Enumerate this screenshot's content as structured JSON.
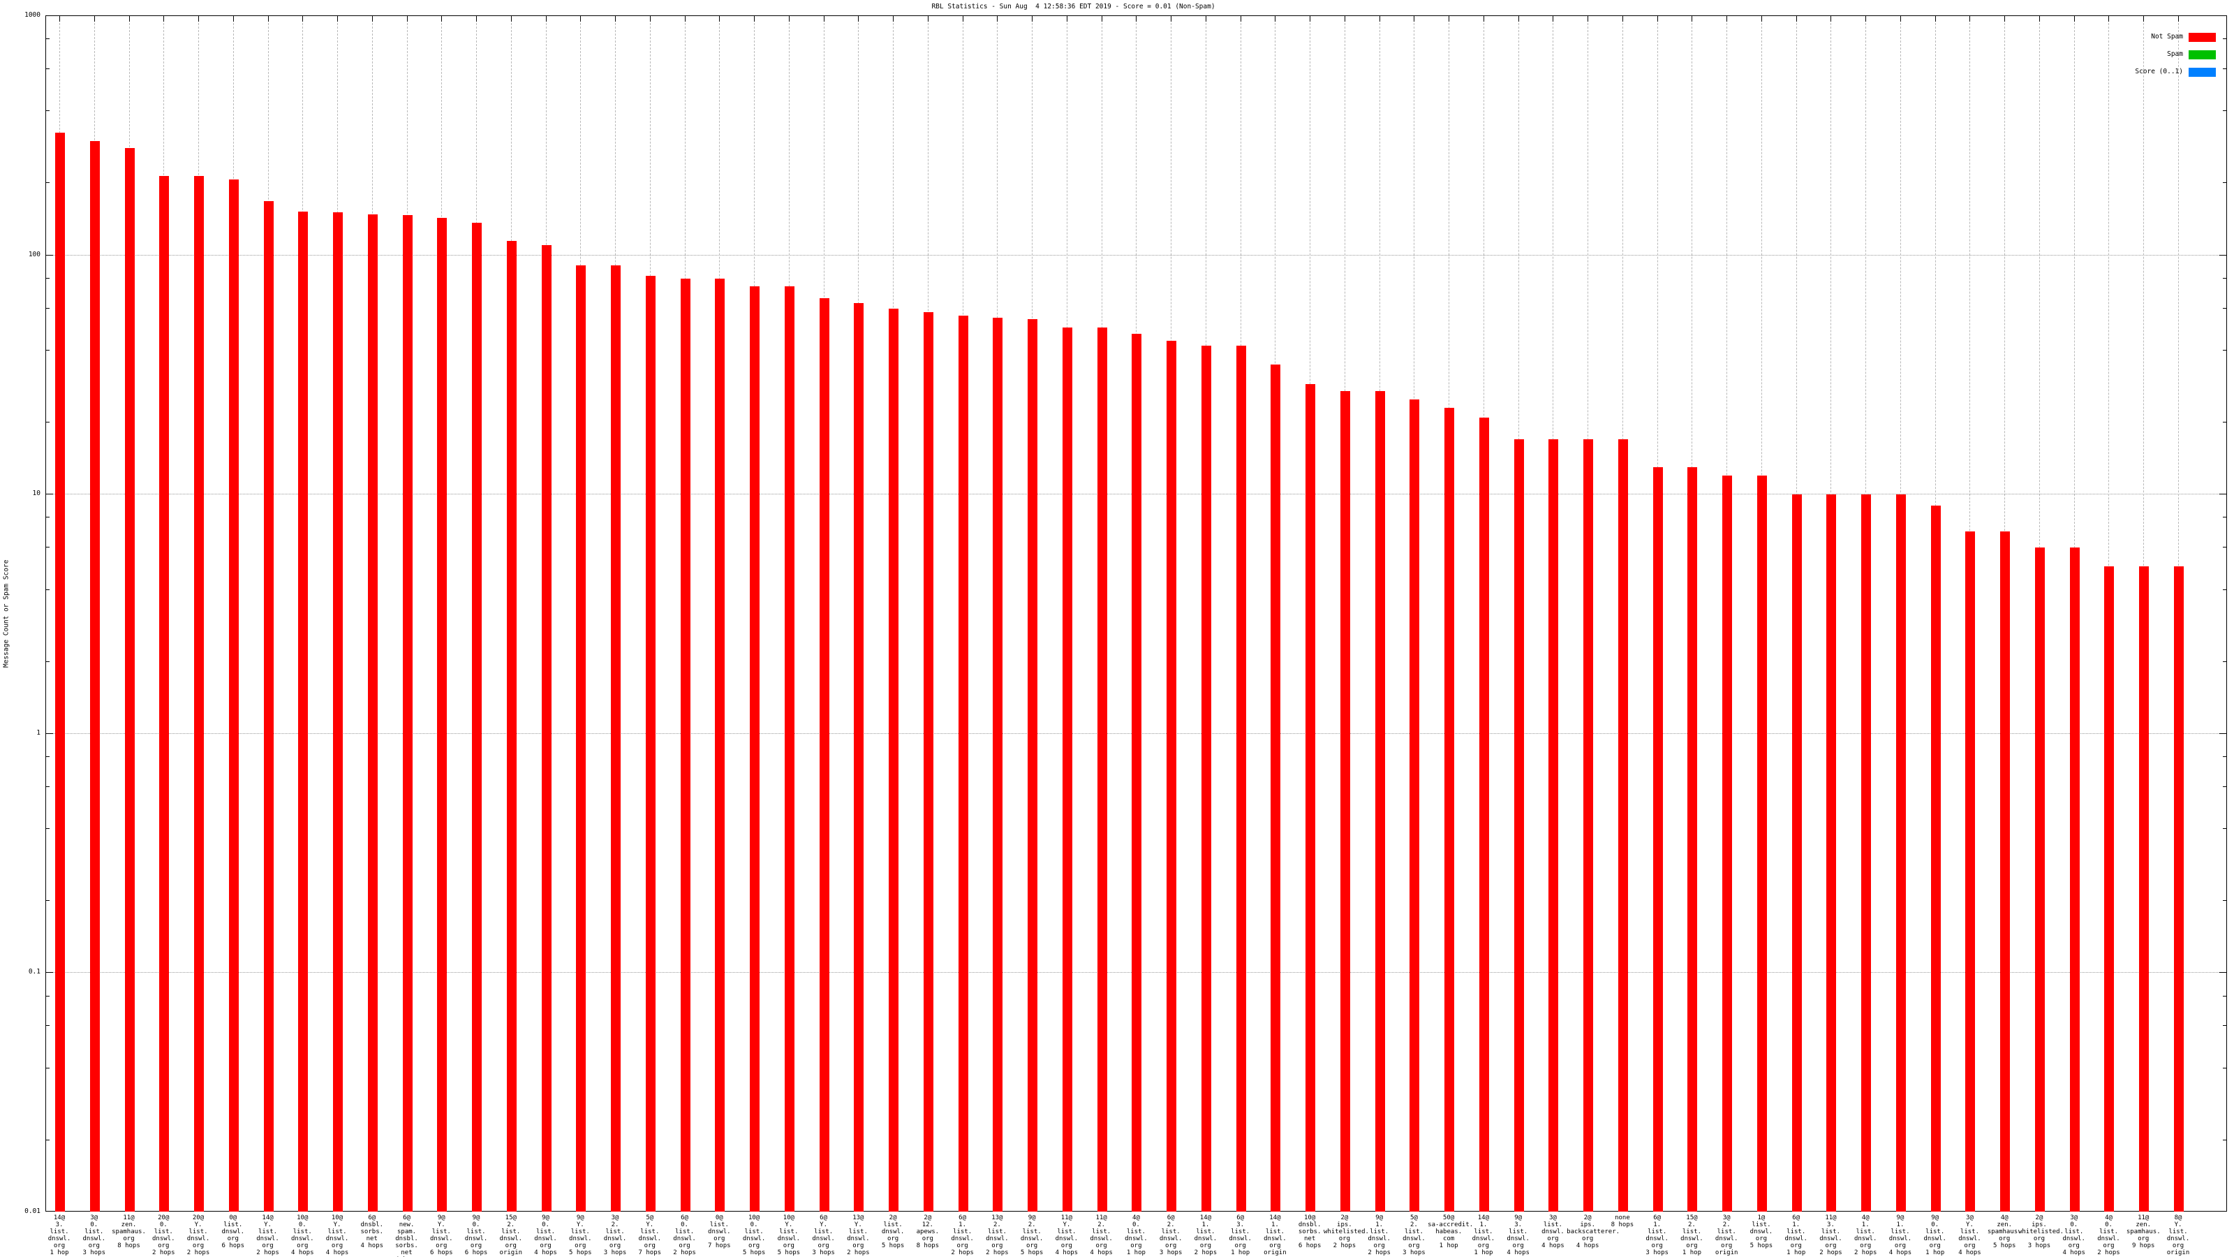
{
  "title": "RBL Statistics - Sun Aug  4 12:58:36 EDT 2019 - Score = 0.01 (Non-Spam)",
  "colors": {
    "not_spam": "#ff0000",
    "spam": "#00c000",
    "score": "#0080ff",
    "border": "#000000",
    "grid_h": "#9a9a9a",
    "grid_v": "#b8b8b8"
  },
  "legend": [
    {
      "label": "Not Spam",
      "color": "#ff0000"
    },
    {
      "label": "Spam",
      "color": "#00c000"
    },
    {
      "label": "Score (0..1)",
      "color": "#0080ff"
    }
  ],
  "chart_data": {
    "type": "bar",
    "title": "RBL Statistics - Sun Aug  4 12:58:36 EDT 2019 - Score = 0.01 (Non-Spam)",
    "ylabel": "Message Count or Spam Score",
    "xlabel": "",
    "yscale": "log",
    "ylim": [
      0.01,
      1000
    ],
    "ytick_labels": [
      "1000",
      "100",
      "10",
      "1",
      "0.1",
      "0.01"
    ],
    "ytick_values": [
      1000,
      100,
      10,
      1,
      0.1,
      0.01
    ],
    "grid": true,
    "legend_position": "top-right-inside",
    "series_name": "Not Spam",
    "bar_color": "#ff0000",
    "bars": [
      {
        "label": "14@\n3.\nlist.\ndnswl.\norg\n1 hop",
        "value": 325
      },
      {
        "label": "3@\n0.\nlist.\ndnswl.\norg\n3 hops",
        "value": 300
      },
      {
        "label": "11@\nzen.\nspamhaus.\norg\n8 hops",
        "value": 280
      },
      {
        "label": "20@\n0.\nlist.\ndnswl.\norg\n2 hops",
        "value": 214
      },
      {
        "label": "20@\nY.\nlist.\ndnswl.\norg\n2 hops",
        "value": 214
      },
      {
        "label": "0@\nlist.\ndnswl.\norg\n6 hops",
        "value": 207
      },
      {
        "label": "14@\nY.\nlist.\ndnswl.\norg\n2 hops",
        "value": 168
      },
      {
        "label": "10@\n0.\nlist.\ndnswl.\norg\n4 hops",
        "value": 152
      },
      {
        "label": "10@\nY.\nlist.\ndnswl.\norg\n4 hops",
        "value": 151
      },
      {
        "label": "6@\ndnsbl.\nsorbs.\nnet\n4 hops",
        "value": 148
      },
      {
        "label": "6@\nnew.\nspam.\ndnsbl.\nsorbs.\nnet\n4 hops",
        "value": 147
      },
      {
        "label": "9@\nY.\nlist.\ndnswl.\norg\n6 hops",
        "value": 143
      },
      {
        "label": "9@\n0.\nlist.\ndnswl.\norg\n6 hops",
        "value": 137
      },
      {
        "label": "15@\n2.\nlist.\ndnswl.\norg\norigin",
        "value": 115
      },
      {
        "label": "9@\n0.\nlist.\ndnswl.\norg\n4 hops",
        "value": 110
      },
      {
        "label": "9@\nY.\nlist.\ndnswl.\norg\n5 hops",
        "value": 91
      },
      {
        "label": "3@\n2.\nlist.\ndnswl.\norg\n3 hops",
        "value": 91
      },
      {
        "label": "5@\nY.\nlist.\ndnswl.\norg\n7 hops",
        "value": 82
      },
      {
        "label": "6@\n0.\nlist.\ndnswl.\norg\n2 hops",
        "value": 80
      },
      {
        "label": "0@\nlist.\ndnswl.\norg\n7 hops",
        "value": 80
      },
      {
        "label": "10@\n0.\nlist.\ndnswl.\norg\n5 hops",
        "value": 74
      },
      {
        "label": "10@\nY.\nlist.\ndnswl.\norg\n5 hops",
        "value": 74
      },
      {
        "label": "6@\nY.\nlist.\ndnswl.\norg\n3 hops",
        "value": 66
      },
      {
        "label": "13@\nY.\nlist.\ndnswl.\norg\n2 hops",
        "value": 63
      },
      {
        "label": "2@\nlist.\ndnswl.\norg\n5 hops",
        "value": 60
      },
      {
        "label": "2@\n12.\napews.\norg\n8 hops",
        "value": 58
      },
      {
        "label": "6@\n1.\nlist.\ndnswl.\norg\n2 hops",
        "value": 56
      },
      {
        "label": "13@\n2.\nlist.\ndnswl.\norg\n2 hops",
        "value": 55
      },
      {
        "label": "9@\n2.\nlist.\ndnswl.\norg\n5 hops",
        "value": 54
      },
      {
        "label": "11@\nY.\nlist.\ndnswl.\norg\n4 hops",
        "value": 50
      },
      {
        "label": "11@\n2.\nlist.\ndnswl.\norg\n4 hops",
        "value": 50
      },
      {
        "label": "4@\n0.\nlist.\ndnswl.\norg\n1 hop",
        "value": 47
      },
      {
        "label": "6@\n2.\nlist.\ndnswl.\norg\n3 hops",
        "value": 44
      },
      {
        "label": "14@\n1.\nlist.\ndnswl.\norg\n2 hops",
        "value": 42
      },
      {
        "label": "6@\n3.\nlist.\ndnswl.\norg\n1 hop",
        "value": 42
      },
      {
        "label": "14@\n1.\nlist.\ndnswl.\norg\norigin",
        "value": 35
      },
      {
        "label": "10@\ndnsbl.\nsorbs.\nnet\n6 hops",
        "value": 29
      },
      {
        "label": "2@\nips.\nwhitelisted.\norg\n2 hops",
        "value": 27
      },
      {
        "label": "9@\n1.\nlist.\ndnswl.\norg\n2 hops",
        "value": 27
      },
      {
        "label": "5@\n2.\nlist.\ndnswl.\norg\n3 hops",
        "value": 25
      },
      {
        "label": "50@\nsa-accredit.\nhabeas.\ncom\n1 hop",
        "value": 23
      },
      {
        "label": "14@\n1.\nlist.\ndnswl.\norg\n1 hop",
        "value": 21
      },
      {
        "label": "9@\n3.\nlist.\ndnswl.\norg\n4 hops",
        "value": 17
      },
      {
        "label": "3@\nlist.\ndnswl.\norg\n4 hops",
        "value": 17
      },
      {
        "label": "2@\nips.\nbackscatterer.\norg\n4 hops",
        "value": 17
      },
      {
        "label": "none\n8 hops",
        "value": 17
      },
      {
        "label": "6@\n1.\nlist.\ndnswl.\norg\n3 hops",
        "value": 13
      },
      {
        "label": "15@\n2.\nlist.\ndnswl.\norg\n1 hop",
        "value": 13
      },
      {
        "label": "3@\n2.\nlist.\ndnswl.\norg\norigin",
        "value": 12
      },
      {
        "label": "1@\nlist.\ndnswl.\norg\n5 hops",
        "value": 12
      },
      {
        "label": "6@\n1.\nlist.\ndnswl.\norg\n1 hop",
        "value": 10
      },
      {
        "label": "11@\n3.\nlist.\ndnswl.\norg\n2 hops",
        "value": 10
      },
      {
        "label": "4@\n1.\nlist.\ndnswl.\norg\n2 hops",
        "value": 10
      },
      {
        "label": "9@\n1.\nlist.\ndnswl.\norg\n4 hops",
        "value": 10
      },
      {
        "label": "9@\n0.\nlist.\ndnswl.\norg\n1 hop",
        "value": 9
      },
      {
        "label": "3@\nY.\nlist.\ndnswl.\norg\n4 hops",
        "value": 7
      },
      {
        "label": "4@\nzen.\nspamhaus.\norg\n5 hops",
        "value": 7
      },
      {
        "label": "2@\nips.\nwhitelisted.\norg\n3 hops",
        "value": 6
      },
      {
        "label": "3@\n0.\nlist.\ndnswl.\norg\n4 hops",
        "value": 6
      },
      {
        "label": "4@\n0.\nlist.\ndnswl.\norg\n2 hops",
        "value": 5
      },
      {
        "label": "11@\nzen.\nspamhaus.\norg\n9 hops",
        "value": 5
      },
      {
        "label": "8@\nY.\nlist.\ndnswl.\norg\norigin",
        "value": 5
      }
    ]
  }
}
